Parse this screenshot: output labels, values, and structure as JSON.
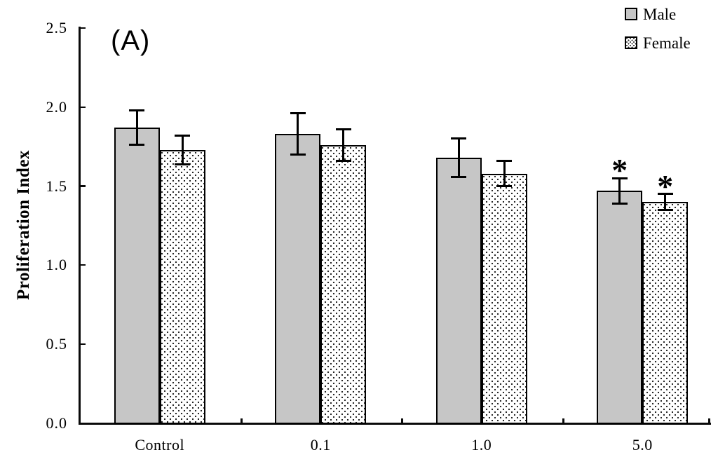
{
  "panel_label": "(A)",
  "legend": {
    "male_label": "Male",
    "female_label": "Female"
  },
  "chart_data": {
    "type": "bar",
    "title": "(A)",
    "categories": [
      "Control",
      "0.1",
      "1.0",
      "5.0"
    ],
    "series": [
      {
        "name": "Male",
        "fill": "gray",
        "values": [
          1.87,
          1.83,
          1.68,
          1.47
        ],
        "errors": [
          0.11,
          0.13,
          0.12,
          0.08
        ],
        "significant": [
          false,
          false,
          false,
          true
        ]
      },
      {
        "name": "Female",
        "fill": "dotted",
        "values": [
          1.73,
          1.76,
          1.58,
          1.4
        ],
        "errors": [
          0.09,
          0.1,
          0.08,
          0.05
        ],
        "significant": [
          false,
          false,
          false,
          true
        ]
      }
    ],
    "xlabel": "",
    "ylabel": "Proliferation Index",
    "ylim": [
      0.0,
      2.5
    ],
    "yticks": [
      "0.0",
      "0.5",
      "1.0",
      "1.5",
      "2.0",
      "2.5"
    ],
    "grid": false,
    "legend_position": "top-right",
    "significance_marker": "*",
    "colors": {
      "male_fill": "#c6c6c6",
      "female_fill": "#ffffff",
      "bar_border": "#000000",
      "axis": "#0a0a0a",
      "background": "#ffffff"
    }
  }
}
